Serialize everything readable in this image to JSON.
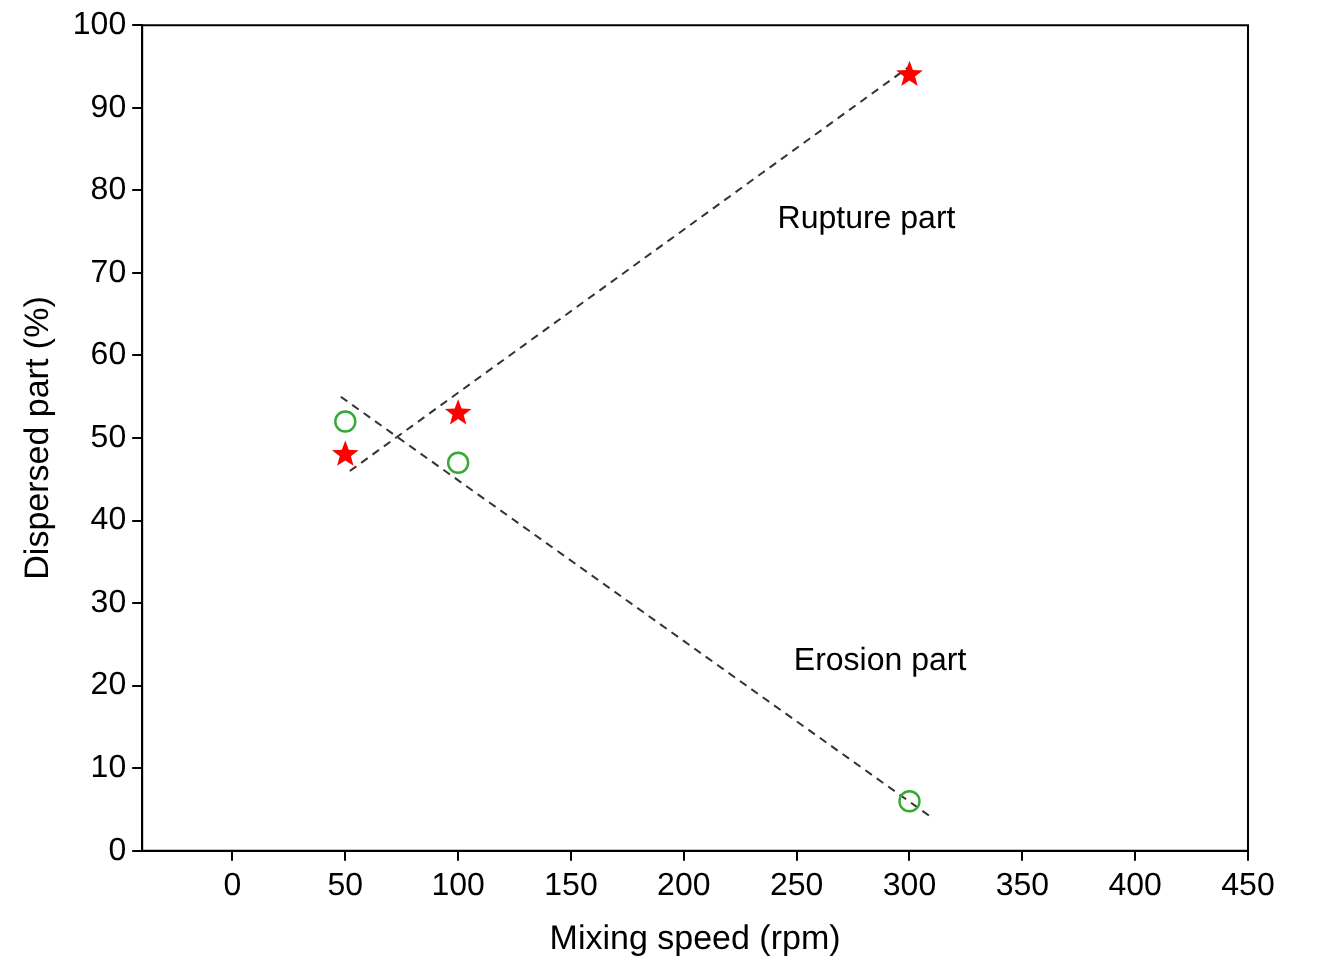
{
  "chart_data": {
    "type": "scatter",
    "xlabel": "Mixing speed (rpm)",
    "ylabel": "Dispersed part (%)",
    "xlim": [
      -40,
      450
    ],
    "xticks": [
      0,
      50,
      100,
      150,
      200,
      250,
      300,
      350,
      400,
      450
    ],
    "ylim": [
      0,
      100
    ],
    "yticks": [
      0,
      10,
      20,
      30,
      40,
      50,
      60,
      70,
      80,
      90,
      100
    ],
    "grid": false,
    "legend": false,
    "series": [
      {
        "type": "scatter",
        "marker": "star",
        "color": "#ff0000",
        "x": [
          50,
          100,
          300
        ],
        "values": [
          48,
          53,
          94
        ]
      },
      {
        "type": "scatter",
        "marker": "circle",
        "color": "#33aa33",
        "x": [
          50,
          100,
          300
        ],
        "values": [
          52,
          47,
          6
        ]
      },
      {
        "type": "line",
        "name": "Rupture part",
        "marker": "none",
        "line_style": "dashed",
        "color": "#333333",
        "x": [
          52,
          300
        ],
        "values": [
          46,
          95
        ]
      },
      {
        "type": "line",
        "name": "Erosion part",
        "marker": "none",
        "line_style": "dashed",
        "color": "#333333",
        "x": [
          48,
          310
        ],
        "values": [
          55,
          4
        ]
      }
    ]
  }
}
